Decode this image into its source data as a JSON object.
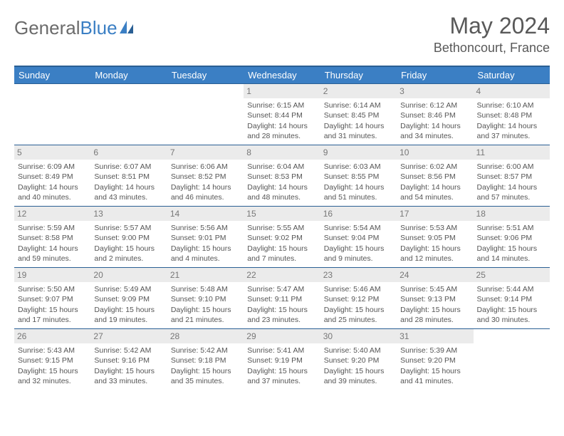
{
  "brand": {
    "name_gray": "General",
    "name_blue": "Blue"
  },
  "title": "May 2024",
  "location": "Bethoncourt, France",
  "colors": {
    "header_bg": "#3b7fc4",
    "header_border": "#2a5f94",
    "daynum_bg": "#ebebeb",
    "text": "#555555",
    "title_color": "#595959"
  },
  "day_headers": [
    "Sunday",
    "Monday",
    "Tuesday",
    "Wednesday",
    "Thursday",
    "Friday",
    "Saturday"
  ],
  "weeks": [
    [
      {
        "num": "",
        "lines": [
          "",
          "",
          "",
          ""
        ]
      },
      {
        "num": "",
        "lines": [
          "",
          "",
          "",
          ""
        ]
      },
      {
        "num": "",
        "lines": [
          "",
          "",
          "",
          ""
        ]
      },
      {
        "num": "1",
        "lines": [
          "Sunrise: 6:15 AM",
          "Sunset: 8:44 PM",
          "Daylight: 14 hours",
          "and 28 minutes."
        ]
      },
      {
        "num": "2",
        "lines": [
          "Sunrise: 6:14 AM",
          "Sunset: 8:45 PM",
          "Daylight: 14 hours",
          "and 31 minutes."
        ]
      },
      {
        "num": "3",
        "lines": [
          "Sunrise: 6:12 AM",
          "Sunset: 8:46 PM",
          "Daylight: 14 hours",
          "and 34 minutes."
        ]
      },
      {
        "num": "4",
        "lines": [
          "Sunrise: 6:10 AM",
          "Sunset: 8:48 PM",
          "Daylight: 14 hours",
          "and 37 minutes."
        ]
      }
    ],
    [
      {
        "num": "5",
        "lines": [
          "Sunrise: 6:09 AM",
          "Sunset: 8:49 PM",
          "Daylight: 14 hours",
          "and 40 minutes."
        ]
      },
      {
        "num": "6",
        "lines": [
          "Sunrise: 6:07 AM",
          "Sunset: 8:51 PM",
          "Daylight: 14 hours",
          "and 43 minutes."
        ]
      },
      {
        "num": "7",
        "lines": [
          "Sunrise: 6:06 AM",
          "Sunset: 8:52 PM",
          "Daylight: 14 hours",
          "and 46 minutes."
        ]
      },
      {
        "num": "8",
        "lines": [
          "Sunrise: 6:04 AM",
          "Sunset: 8:53 PM",
          "Daylight: 14 hours",
          "and 48 minutes."
        ]
      },
      {
        "num": "9",
        "lines": [
          "Sunrise: 6:03 AM",
          "Sunset: 8:55 PM",
          "Daylight: 14 hours",
          "and 51 minutes."
        ]
      },
      {
        "num": "10",
        "lines": [
          "Sunrise: 6:02 AM",
          "Sunset: 8:56 PM",
          "Daylight: 14 hours",
          "and 54 minutes."
        ]
      },
      {
        "num": "11",
        "lines": [
          "Sunrise: 6:00 AM",
          "Sunset: 8:57 PM",
          "Daylight: 14 hours",
          "and 57 minutes."
        ]
      }
    ],
    [
      {
        "num": "12",
        "lines": [
          "Sunrise: 5:59 AM",
          "Sunset: 8:58 PM",
          "Daylight: 14 hours",
          "and 59 minutes."
        ]
      },
      {
        "num": "13",
        "lines": [
          "Sunrise: 5:57 AM",
          "Sunset: 9:00 PM",
          "Daylight: 15 hours",
          "and 2 minutes."
        ]
      },
      {
        "num": "14",
        "lines": [
          "Sunrise: 5:56 AM",
          "Sunset: 9:01 PM",
          "Daylight: 15 hours",
          "and 4 minutes."
        ]
      },
      {
        "num": "15",
        "lines": [
          "Sunrise: 5:55 AM",
          "Sunset: 9:02 PM",
          "Daylight: 15 hours",
          "and 7 minutes."
        ]
      },
      {
        "num": "16",
        "lines": [
          "Sunrise: 5:54 AM",
          "Sunset: 9:04 PM",
          "Daylight: 15 hours",
          "and 9 minutes."
        ]
      },
      {
        "num": "17",
        "lines": [
          "Sunrise: 5:53 AM",
          "Sunset: 9:05 PM",
          "Daylight: 15 hours",
          "and 12 minutes."
        ]
      },
      {
        "num": "18",
        "lines": [
          "Sunrise: 5:51 AM",
          "Sunset: 9:06 PM",
          "Daylight: 15 hours",
          "and 14 minutes."
        ]
      }
    ],
    [
      {
        "num": "19",
        "lines": [
          "Sunrise: 5:50 AM",
          "Sunset: 9:07 PM",
          "Daylight: 15 hours",
          "and 17 minutes."
        ]
      },
      {
        "num": "20",
        "lines": [
          "Sunrise: 5:49 AM",
          "Sunset: 9:09 PM",
          "Daylight: 15 hours",
          "and 19 minutes."
        ]
      },
      {
        "num": "21",
        "lines": [
          "Sunrise: 5:48 AM",
          "Sunset: 9:10 PM",
          "Daylight: 15 hours",
          "and 21 minutes."
        ]
      },
      {
        "num": "22",
        "lines": [
          "Sunrise: 5:47 AM",
          "Sunset: 9:11 PM",
          "Daylight: 15 hours",
          "and 23 minutes."
        ]
      },
      {
        "num": "23",
        "lines": [
          "Sunrise: 5:46 AM",
          "Sunset: 9:12 PM",
          "Daylight: 15 hours",
          "and 25 minutes."
        ]
      },
      {
        "num": "24",
        "lines": [
          "Sunrise: 5:45 AM",
          "Sunset: 9:13 PM",
          "Daylight: 15 hours",
          "and 28 minutes."
        ]
      },
      {
        "num": "25",
        "lines": [
          "Sunrise: 5:44 AM",
          "Sunset: 9:14 PM",
          "Daylight: 15 hours",
          "and 30 minutes."
        ]
      }
    ],
    [
      {
        "num": "26",
        "lines": [
          "Sunrise: 5:43 AM",
          "Sunset: 9:15 PM",
          "Daylight: 15 hours",
          "and 32 minutes."
        ]
      },
      {
        "num": "27",
        "lines": [
          "Sunrise: 5:42 AM",
          "Sunset: 9:16 PM",
          "Daylight: 15 hours",
          "and 33 minutes."
        ]
      },
      {
        "num": "28",
        "lines": [
          "Sunrise: 5:42 AM",
          "Sunset: 9:18 PM",
          "Daylight: 15 hours",
          "and 35 minutes."
        ]
      },
      {
        "num": "29",
        "lines": [
          "Sunrise: 5:41 AM",
          "Sunset: 9:19 PM",
          "Daylight: 15 hours",
          "and 37 minutes."
        ]
      },
      {
        "num": "30",
        "lines": [
          "Sunrise: 5:40 AM",
          "Sunset: 9:20 PM",
          "Daylight: 15 hours",
          "and 39 minutes."
        ]
      },
      {
        "num": "31",
        "lines": [
          "Sunrise: 5:39 AM",
          "Sunset: 9:20 PM",
          "Daylight: 15 hours",
          "and 41 minutes."
        ]
      },
      {
        "num": "",
        "lines": [
          "",
          "",
          "",
          ""
        ]
      }
    ]
  ]
}
